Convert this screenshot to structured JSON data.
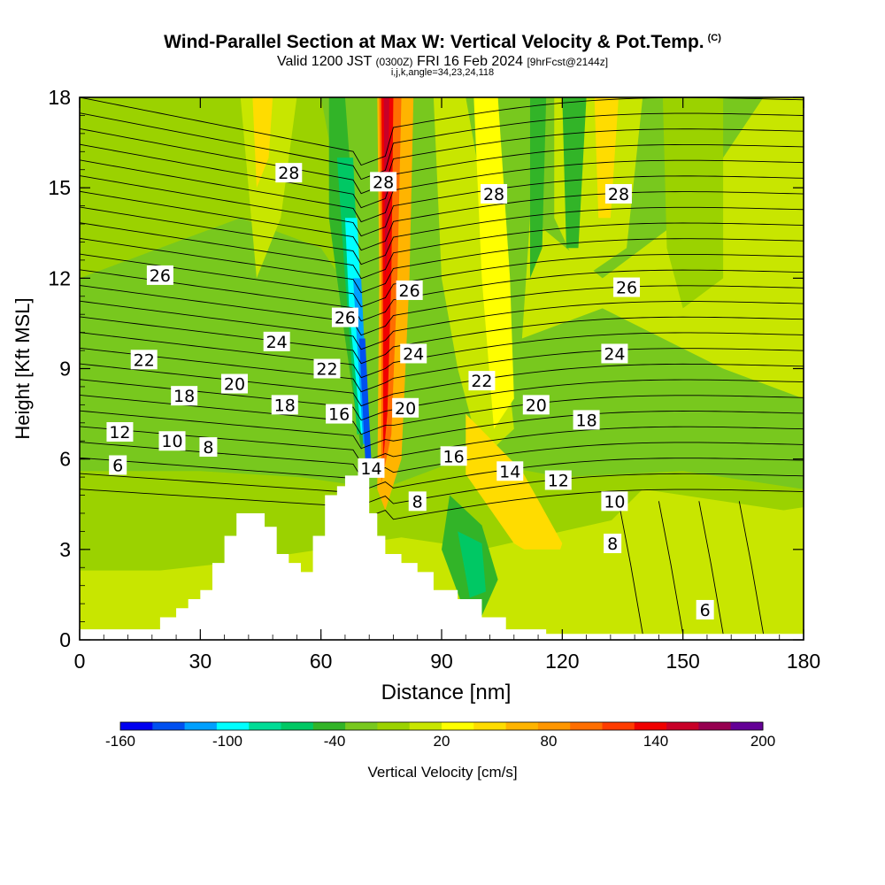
{
  "title": {
    "main": "Wind-Parallel Section at Max W: Vertical Velocity & Pot.Temp.",
    "copyright": "(C)",
    "valid_prefix": "Valid 1200 JST",
    "valid_utc": "(0300Z)",
    "valid_date": "FRI 16 Feb 2024",
    "forecast": "[9hrFcst@2144z]",
    "indices": "i,j,k,angle=34,23,24,118"
  },
  "chart_data": {
    "type": "heatmap",
    "xlabel": "Distance [nm]",
    "ylabel": "Height [Kft MSL]",
    "xlim": [
      0,
      180
    ],
    "ylim": [
      0,
      18
    ],
    "x_ticks": [
      "0",
      "30",
      "60",
      "90",
      "120",
      "150",
      "180"
    ],
    "y_ticks": [
      "0",
      "3",
      "6",
      "9",
      "12",
      "15",
      "18"
    ],
    "colorbar": {
      "label": "Vertical Velocity [cm/s]",
      "tick_labels": [
        "-160",
        "-100",
        "-40",
        "20",
        "80",
        "140",
        "200"
      ],
      "colors": [
        "#0000f0",
        "#0050f0",
        "#00a0ff",
        "#00ffff",
        "#00dc96",
        "#00c864",
        "#32b428",
        "#78c81e",
        "#9bd200",
        "#c8e600",
        "#ffff00",
        "#ffdc00",
        "#ffb400",
        "#ff9600",
        "#ff6e00",
        "#ff3c00",
        "#f00000",
        "#c80028",
        "#960050",
        "#640096"
      ]
    },
    "terrain_profile": {
      "x": [
        0,
        20,
        24,
        27,
        30,
        33,
        36,
        39,
        42,
        46,
        49,
        52,
        55,
        58,
        61,
        64,
        66,
        70,
        72,
        74,
        76,
        80,
        84,
        88,
        94,
        100,
        106,
        110,
        116,
        122,
        128,
        140,
        160,
        180
      ],
      "height_kft": [
        0.35,
        0.35,
        0.75,
        1.05,
        1.35,
        1.65,
        2.55,
        3.45,
        4.2,
        4.2,
        3.75,
        2.85,
        2.55,
        2.25,
        3.45,
        4.8,
        5.1,
        5.45,
        5.45,
        4.2,
        3.45,
        2.85,
        2.55,
        2.25,
        1.65,
        1.35,
        0.75,
        0.35,
        0.35,
        0.2,
        0.2,
        0.2,
        0.2,
        0.2
      ]
    },
    "theta_contour_labels": [
      {
        "text": "6",
        "x": 9.5,
        "y": 5.8
      },
      {
        "text": "8",
        "x": 32,
        "y": 6.4
      },
      {
        "text": "10",
        "x": 23,
        "y": 6.6
      },
      {
        "text": "12",
        "x": 10,
        "y": 6.9
      },
      {
        "text": "14",
        "x": 72.5,
        "y": 5.7
      },
      {
        "text": "16",
        "x": 64.5,
        "y": 7.5
      },
      {
        "text": "18",
        "x": 26,
        "y": 8.1
      },
      {
        "text": "18",
        "x": 51,
        "y": 7.8
      },
      {
        "text": "20",
        "x": 38.5,
        "y": 8.5
      },
      {
        "text": "22",
        "x": 16,
        "y": 9.3
      },
      {
        "text": "22",
        "x": 61.5,
        "y": 9.0
      },
      {
        "text": "24",
        "x": 49,
        "y": 9.9
      },
      {
        "text": "26",
        "x": 20,
        "y": 12.1
      },
      {
        "text": "26",
        "x": 66,
        "y": 10.7
      },
      {
        "text": "28",
        "x": 52,
        "y": 15.5
      },
      {
        "text": "28",
        "x": 75.5,
        "y": 15.2
      },
      {
        "text": "26",
        "x": 82,
        "y": 11.6
      },
      {
        "text": "24",
        "x": 83,
        "y": 9.5
      },
      {
        "text": "20",
        "x": 81,
        "y": 7.7
      },
      {
        "text": "8",
        "x": 84,
        "y": 4.6
      },
      {
        "text": "16",
        "x": 93,
        "y": 6.1
      },
      {
        "text": "22",
        "x": 100,
        "y": 8.6
      },
      {
        "text": "28",
        "x": 103,
        "y": 14.8
      },
      {
        "text": "14",
        "x": 107,
        "y": 5.6
      },
      {
        "text": "20",
        "x": 113.5,
        "y": 7.8
      },
      {
        "text": "12",
        "x": 119,
        "y": 5.3
      },
      {
        "text": "18",
        "x": 126,
        "y": 7.3
      },
      {
        "text": "24",
        "x": 133,
        "y": 9.5
      },
      {
        "text": "26",
        "x": 136,
        "y": 11.7
      },
      {
        "text": "28",
        "x": 134,
        "y": 14.8
      },
      {
        "text": "10",
        "x": 133,
        "y": 4.6
      },
      {
        "text": "8",
        "x": 132.5,
        "y": 3.2
      },
      {
        "text": "6",
        "x": 155.5,
        "y": 1.0
      }
    ]
  }
}
